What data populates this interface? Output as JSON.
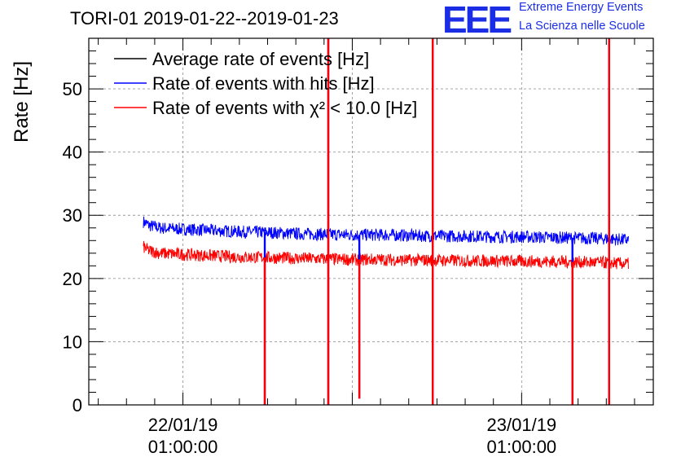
{
  "header": {
    "title": "TORI-01 2019-01-22--2019-01-23",
    "logo_text": "EEE",
    "logo_line1": "Extreme Energy Events",
    "logo_line2": "La Scienza nelle Scuole",
    "logo_color": "#1b2ee6"
  },
  "chart_data": {
    "type": "line",
    "ylabel": "Rate [Hz]",
    "xlabel": "",
    "ylim": [
      0,
      58
    ],
    "xlim_hours": [
      -6.67,
      33.33
    ],
    "y_ticks": [
      0,
      10,
      20,
      30,
      40,
      50
    ],
    "x_ticks": [
      {
        "hours": 0,
        "date": "22/01/19",
        "time": "01:00:00"
      },
      {
        "hours": 24,
        "date": "23/01/19",
        "time": "01:00:00"
      }
    ],
    "grid": true,
    "legend_position": "top-left",
    "legend": [
      {
        "label": "Average rate of events [Hz]",
        "color": "#000000"
      },
      {
        "label": "Rate of events with hits [Hz]",
        "color": "#0000ff"
      },
      {
        "label": "Rate of events with χ² < 10.0 [Hz]",
        "color": "#ff0000"
      }
    ],
    "series": [
      {
        "name": "Rate of events with hits [Hz]",
        "color": "#0000ff",
        "x_hours": [
          -2.8,
          -2.4,
          -1.6,
          0,
          2,
          4,
          6,
          8,
          10,
          12,
          14,
          16,
          18,
          20,
          22,
          24,
          26,
          28,
          30,
          31.6
        ],
        "values": [
          29.0,
          28.4,
          28.0,
          27.8,
          27.6,
          27.4,
          27.3,
          27.1,
          27.0,
          26.9,
          26.9,
          26.8,
          26.7,
          26.7,
          26.6,
          26.6,
          26.5,
          26.4,
          26.3,
          26.1
        ]
      },
      {
        "name": "Rate of events with χ² < 10.0 [Hz]",
        "color": "#ff0000",
        "x_hours": [
          -2.8,
          -2.4,
          -1.6,
          0,
          2,
          4,
          6,
          8,
          10,
          12,
          14,
          16,
          18,
          20,
          22,
          24,
          26,
          28,
          30,
          31.6
        ],
        "values": [
          25.0,
          24.4,
          24.0,
          23.8,
          23.6,
          23.4,
          23.3,
          23.2,
          23.1,
          23.0,
          23.0,
          22.9,
          22.9,
          22.8,
          22.8,
          22.7,
          22.7,
          22.6,
          22.5,
          22.3
        ]
      }
    ],
    "spikes": [
      {
        "x_hours": 5.8,
        "min": 0,
        "type": "dip"
      },
      {
        "x_hours": 10.3,
        "min": 0,
        "max": 58,
        "type": "spike"
      },
      {
        "x_hours": 12.5,
        "min": 1,
        "type": "dip"
      },
      {
        "x_hours": 17.7,
        "min": 0,
        "max": 58,
        "type": "spike"
      },
      {
        "x_hours": 27.6,
        "min": 0,
        "type": "dip"
      },
      {
        "x_hours": 30.2,
        "min": 0,
        "max": 58,
        "type": "spike"
      }
    ]
  }
}
